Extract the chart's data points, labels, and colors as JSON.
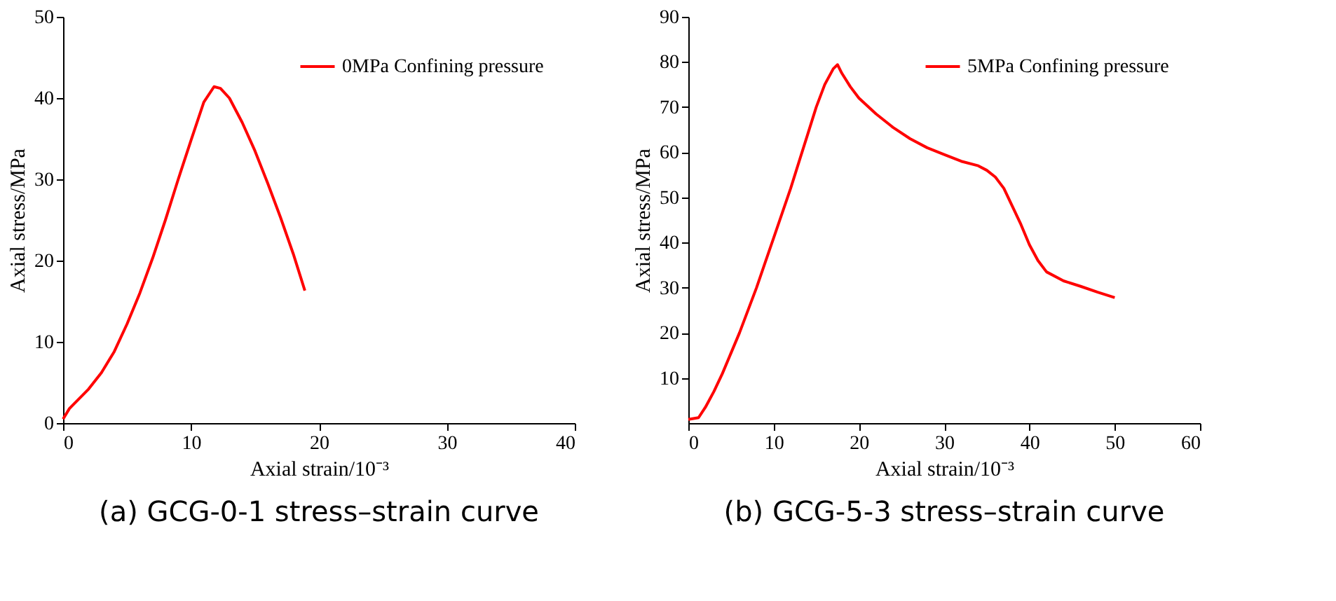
{
  "chart_data": [
    {
      "type": "line",
      "title": "(a) GCG-0-1 stress–strain curve",
      "xlabel": "Axial strain/10⁻³",
      "ylabel": "Axial stress/MPa",
      "xlim": [
        0,
        40
      ],
      "xticks": [
        0,
        10,
        20,
        30,
        40
      ],
      "ylim": [
        0,
        50
      ],
      "yticks": [
        0,
        10,
        20,
        30,
        40,
        50
      ],
      "grid": false,
      "legend": "top right",
      "series": [
        {
          "name": "0MPa Confining pressure",
          "color": "#ff0000",
          "x": [
            0,
            0.5,
            1,
            2,
            3,
            4,
            5,
            6,
            7,
            8,
            9,
            10,
            11,
            11.8,
            12.3,
            13,
            14,
            15,
            16,
            17,
            18,
            18.9
          ],
          "values": [
            0.5,
            1.8,
            2.6,
            4.2,
            6.2,
            8.8,
            12.2,
            16,
            20.3,
            25,
            30,
            34.8,
            39.5,
            41.4,
            41.2,
            40,
            37,
            33.5,
            29.5,
            25.3,
            20.8,
            16.3
          ]
        }
      ]
    },
    {
      "type": "line",
      "title": "(b) GCG-5-3 stress–strain curve",
      "xlabel": "Axial strain/10⁻³",
      "ylabel": "Axial stress/MPa",
      "xlim": [
        0,
        60
      ],
      "xticks": [
        0,
        10,
        20,
        30,
        40,
        50,
        60
      ],
      "ylim": [
        0,
        90
      ],
      "yticks": [
        10,
        20,
        30,
        40,
        50,
        60,
        70,
        80,
        90
      ],
      "grid": false,
      "legend": "top right",
      "series": [
        {
          "name": "5MPa Confining pressure",
          "color": "#ff0000",
          "x": [
            0,
            1.2,
            2,
            3,
            4,
            5,
            6,
            7,
            8,
            9,
            10,
            11,
            12,
            13,
            14,
            15,
            16,
            17,
            17.5,
            18,
            19,
            20,
            22,
            24,
            26,
            28,
            30,
            32,
            34,
            35,
            36,
            37,
            38,
            39,
            40,
            41,
            42,
            44,
            46,
            48,
            50
          ],
          "values": [
            0.8,
            1.2,
            3.5,
            7,
            11,
            15.5,
            20,
            25,
            30,
            35.5,
            41,
            46.5,
            52,
            58,
            64,
            70,
            75,
            78.5,
            79.4,
            77.5,
            74.5,
            72,
            68.5,
            65.5,
            63,
            61,
            59.5,
            58,
            57,
            56,
            54.5,
            52,
            48,
            44,
            39.5,
            36,
            33.5,
            31.5,
            30.3,
            29,
            27.8
          ]
        }
      ]
    }
  ]
}
